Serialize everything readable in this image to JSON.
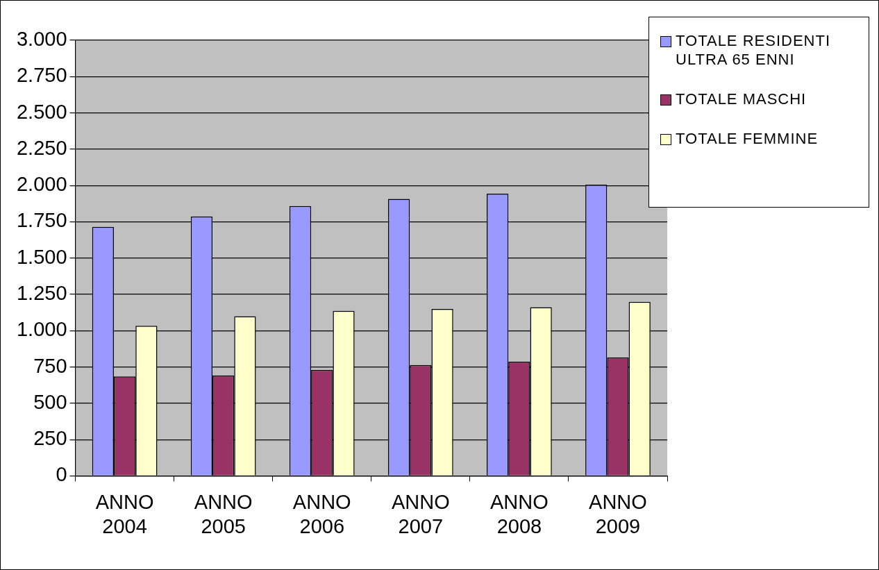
{
  "chart_data": {
    "type": "bar",
    "categories": [
      "ANNO 2004",
      "ANNO 2005",
      "ANNO 2006",
      "ANNO 2007",
      "ANNO 2008",
      "ANNO 2009"
    ],
    "series": [
      {
        "name": "TOTALE RESIDENTI ULTRA 65 ENNI",
        "color": "#9999ff",
        "values": [
          1715,
          1787,
          1858,
          1907,
          1943,
          2006
        ]
      },
      {
        "name": "TOTALE MASCHI",
        "color": "#993366",
        "values": [
          685,
          692,
          730,
          763,
          786,
          816
        ]
      },
      {
        "name": "TOTALE FEMMINE",
        "color": "#ffffcc",
        "values": [
          1033,
          1099,
          1136,
          1149,
          1162,
          1198
        ]
      }
    ],
    "ylim": [
      0,
      3000
    ],
    "yticks": [
      0,
      250,
      {
        "value": 500,
        "label": "500"
      },
      {
        "value": 750,
        "label": "750"
      },
      {
        "value": 1000,
        "label": "1.000"
      },
      {
        "value": 1250,
        "label": "1.250"
      },
      {
        "value": 1500,
        "label": "1.500"
      },
      {
        "value": 1750,
        "label": "1.750"
      },
      {
        "value": 2000,
        "label": "2.000"
      },
      {
        "value": 2250,
        "label": "2.250"
      },
      {
        "value": 2500,
        "label": "2.500"
      },
      {
        "value": 2750,
        "label": "2.750"
      },
      {
        "value": 3000,
        "label": "3.000"
      }
    ],
    "grid": "y",
    "legend": "top right"
  }
}
